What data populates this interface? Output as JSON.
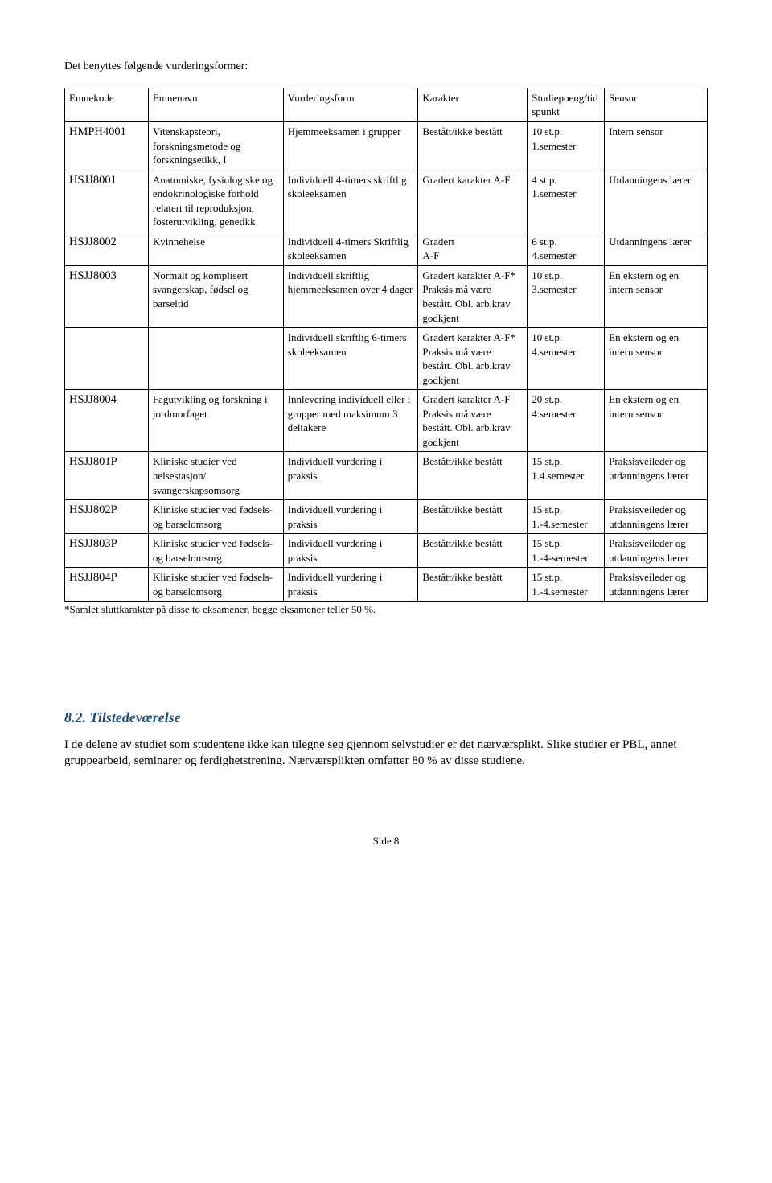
{
  "intro_text": "Det benyttes følgende vurderingsformer:",
  "columns": [
    "Emnekode",
    "Emnenavn",
    "Vurderingsform",
    "Karakter",
    "Studiepoeng/tidspunkt",
    "Sensur"
  ],
  "rows": [
    {
      "code": "HMPH4001",
      "name": "Vitenskapsteori, forskningsmetode og forskningsetikk, I",
      "form": "Hjemmeeksamen i grupper",
      "grade": "Bestått/ikke bestått",
      "time": "10 st.p.\n1.semester",
      "sensor": "Intern sensor"
    },
    {
      "code": "HSJJ8001",
      "name": "Anatomiske, fysiologiske og endokrinologiske forhold relatert til reproduksjon, fosterutvikling, genetikk",
      "form": "Individuell 4-timers skriftlig skoleeksamen",
      "grade": "Gradert karakter A-F",
      "time": "4 st.p.\n1.semester",
      "sensor": "Utdanningens lærer"
    },
    {
      "code": "HSJJ8002",
      "name": "Kvinnehelse",
      "form": "Individuell 4-timers Skriftlig skoleeksamen",
      "grade": "Gradert\nA-F",
      "time": "6 st.p.\n4.semester",
      "sensor": "Utdanningens lærer"
    },
    {
      "code": "HSJJ8003",
      "name": "Normalt og komplisert svangerskap, fødsel og barseltid",
      "form": "Individuell skriftlig hjemmeeksamen over 4 dager",
      "grade": "Gradert karakter A-F*\nPraksis må være bestått. Obl. arb.krav godkjent",
      "time": "10 st.p.\n3.semester",
      "sensor": "En ekstern og en intern sensor"
    },
    {
      "code": "",
      "name": "",
      "form": "Individuell skriftlig 6-timers skoleeksamen",
      "grade": "Gradert karakter A-F*\nPraksis må være bestått. Obl. arb.krav godkjent",
      "time": "10 st.p.\n4.semester",
      "sensor": "En ekstern og en intern sensor"
    },
    {
      "code": "HSJJ8004",
      "name": "Fagutvikling og forskning i jordmorfaget",
      "form": "Innlevering individuell eller i grupper med maksimum 3 deltakere",
      "grade": "Gradert karakter A-F\nPraksis må være bestått. Obl. arb.krav godkjent",
      "time": "20 st.p.\n4.semester",
      "sensor": "En ekstern og en intern sensor"
    },
    {
      "code": "HSJJ801P",
      "name": "Kliniske studier ved helsestasjon/ svangerskapsomsorg",
      "form": "Individuell vurdering i praksis",
      "grade": "Bestått/ikke bestått",
      "time": "15 st.p.\n1.4.semester",
      "sensor": "Praksisveileder og  utdanningens lærer"
    },
    {
      "code": "HSJJ802P",
      "name": "Kliniske studier ved fødsels- og barselomsorg",
      "form": "Individuell vurdering i praksis",
      "grade": "Bestått/ikke bestått",
      "time": "15 st.p.\n1.-4.semester",
      "sensor": "Praksisveileder og utdanningens lærer"
    },
    {
      "code": "HSJJ803P",
      "name": "Kliniske studier ved fødsels- og barselomsorg",
      "form": "Individuell vurdering i praksis",
      "grade": "Bestått/ikke bestått",
      "time": "15 st.p.\n1.-4-semester",
      "sensor": "Praksisveileder og utdanningens lærer"
    },
    {
      "code": "HSJJ804P",
      "name": "Kliniske studier ved fødsels- og barselomsorg",
      "form": "Individuell vurdering i praksis",
      "grade": "Bestått/ikke bestått",
      "time": "15 st.p.\n1.-4.semester",
      "sensor": "Praksisveileder og utdanningens lærer"
    }
  ],
  "footnote": "*Samlet sluttkarakter på disse to eksamener, begge eksamener teller 50 %.",
  "section_heading": "8.2. Tilstedeværelse",
  "section_text": "I de delene av studiet som studentene ikke kan tilegne seg gjennom selvstudier er det nærværsplikt. Slike studier er PBL, annet gruppearbeid, seminarer og ferdighetstrening. Nærværsplikten omfatter 80 % av disse studiene.",
  "page_label": "Side 8",
  "heading_color": "#1f4e79"
}
